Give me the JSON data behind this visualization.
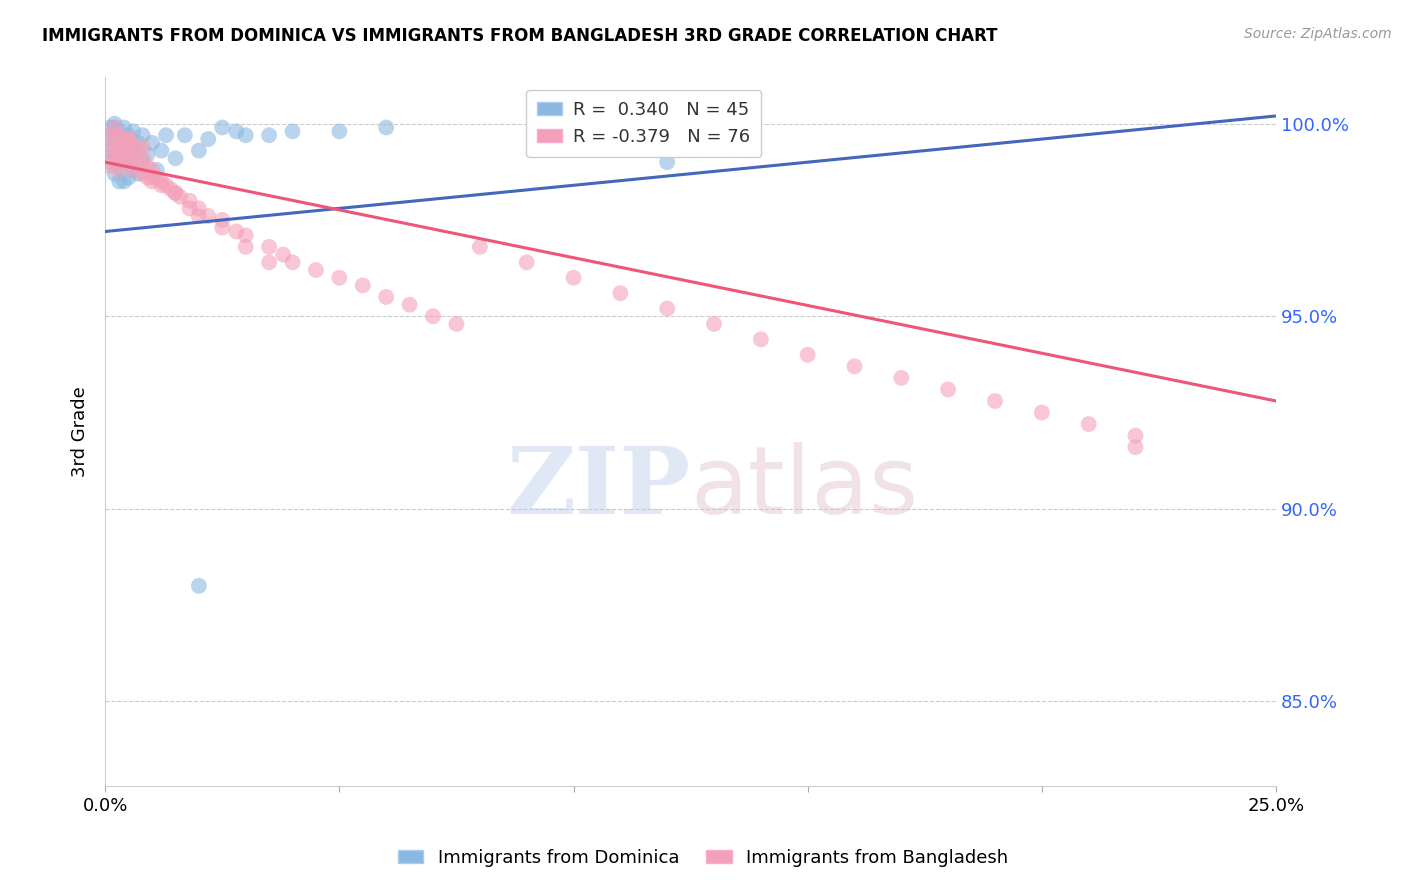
{
  "title": "IMMIGRANTS FROM DOMINICA VS IMMIGRANTS FROM BANGLADESH 3RD GRADE CORRELATION CHART",
  "source": "Source: ZipAtlas.com",
  "ylabel": "3rd Grade",
  "ytick_labels": [
    "85.0%",
    "90.0%",
    "95.0%",
    "100.0%"
  ],
  "ytick_values": [
    0.85,
    0.9,
    0.95,
    1.0
  ],
  "xlim": [
    0.0,
    0.25
  ],
  "ylim": [
    0.828,
    1.012
  ],
  "blue_R": 0.34,
  "blue_N": 45,
  "pink_R": -0.379,
  "pink_N": 76,
  "blue_color": "#8BB8E0",
  "pink_color": "#F4A0B8",
  "blue_line_color": "#4466BB",
  "pink_line_color": "#EE5577",
  "legend_label_blue": "Immigrants from Dominica",
  "legend_label_pink": "Immigrants from Bangladesh",
  "background_color": "#FFFFFF",
  "blue_line_x": [
    0.0,
    0.25
  ],
  "blue_line_y": [
    0.972,
    1.002
  ],
  "pink_line_x": [
    0.0,
    0.25
  ],
  "pink_line_y": [
    0.99,
    0.928
  ],
  "blue_x": [
    0.001,
    0.001,
    0.001,
    0.001,
    0.002,
    0.002,
    0.002,
    0.002,
    0.002,
    0.003,
    0.003,
    0.003,
    0.003,
    0.004,
    0.004,
    0.004,
    0.004,
    0.005,
    0.005,
    0.005,
    0.006,
    0.006,
    0.006,
    0.007,
    0.007,
    0.008,
    0.008,
    0.009,
    0.01,
    0.011,
    0.012,
    0.013,
    0.015,
    0.017,
    0.02,
    0.022,
    0.025,
    0.028,
    0.03,
    0.035,
    0.04,
    0.05,
    0.06,
    0.02,
    0.12
  ],
  "blue_y": [
    0.99,
    0.993,
    0.996,
    0.999,
    0.987,
    0.992,
    0.996,
    0.999,
    1.0,
    0.985,
    0.989,
    0.993,
    0.998,
    0.985,
    0.99,
    0.994,
    0.999,
    0.986,
    0.992,
    0.997,
    0.988,
    0.993,
    0.998,
    0.987,
    0.995,
    0.99,
    0.997,
    0.992,
    0.995,
    0.988,
    0.993,
    0.997,
    0.991,
    0.997,
    0.993,
    0.996,
    0.999,
    0.998,
    0.997,
    0.997,
    0.998,
    0.998,
    0.999,
    0.88,
    0.99
  ],
  "pink_x": [
    0.001,
    0.001,
    0.001,
    0.002,
    0.002,
    0.002,
    0.002,
    0.003,
    0.003,
    0.003,
    0.003,
    0.004,
    0.004,
    0.004,
    0.005,
    0.005,
    0.005,
    0.006,
    0.006,
    0.006,
    0.007,
    0.007,
    0.008,
    0.008,
    0.009,
    0.009,
    0.01,
    0.01,
    0.011,
    0.012,
    0.013,
    0.014,
    0.015,
    0.016,
    0.018,
    0.02,
    0.022,
    0.025,
    0.028,
    0.03,
    0.035,
    0.038,
    0.04,
    0.045,
    0.05,
    0.055,
    0.06,
    0.065,
    0.07,
    0.075,
    0.08,
    0.09,
    0.1,
    0.11,
    0.12,
    0.13,
    0.14,
    0.15,
    0.16,
    0.17,
    0.18,
    0.19,
    0.2,
    0.21,
    0.22,
    0.005,
    0.008,
    0.01,
    0.012,
    0.015,
    0.018,
    0.02,
    0.025,
    0.03,
    0.035,
    0.22
  ],
  "pink_y": [
    0.997,
    0.993,
    0.989,
    0.999,
    0.996,
    0.993,
    0.99,
    0.997,
    0.994,
    0.991,
    0.988,
    0.996,
    0.993,
    0.99,
    0.996,
    0.993,
    0.99,
    0.994,
    0.991,
    0.988,
    0.993,
    0.989,
    0.991,
    0.987,
    0.989,
    0.986,
    0.988,
    0.985,
    0.986,
    0.985,
    0.984,
    0.983,
    0.982,
    0.981,
    0.98,
    0.978,
    0.976,
    0.975,
    0.972,
    0.971,
    0.968,
    0.966,
    0.964,
    0.962,
    0.96,
    0.958,
    0.955,
    0.953,
    0.95,
    0.948,
    0.968,
    0.964,
    0.96,
    0.956,
    0.952,
    0.948,
    0.944,
    0.94,
    0.937,
    0.934,
    0.931,
    0.928,
    0.925,
    0.922,
    0.919,
    0.996,
    0.994,
    0.986,
    0.984,
    0.982,
    0.978,
    0.976,
    0.973,
    0.968,
    0.964,
    0.916
  ]
}
